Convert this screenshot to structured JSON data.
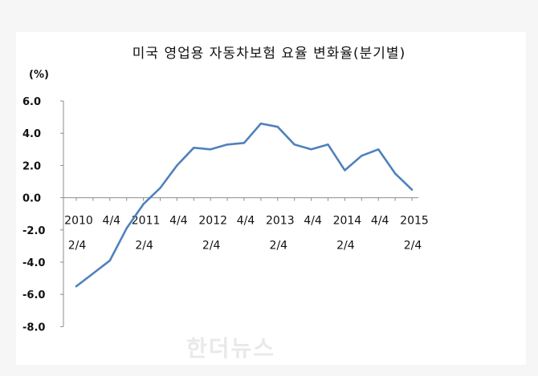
{
  "chart_data": {
    "type": "line",
    "title": "미국 영업용 자동차보험 요율 변화율(분기별)",
    "unit": "(%)",
    "ylim": [
      -8,
      6
    ],
    "yticks": [
      "6.0",
      "4.0",
      "2.0",
      "0.0",
      "-2.0",
      "-4.0",
      "-6.0",
      "-8.0"
    ],
    "ytick_values": [
      6,
      4,
      2,
      0,
      -2,
      -4,
      -6,
      -8
    ],
    "x_labels": [
      {
        "index": 0,
        "line1": "2010",
        "line2": "2/4"
      },
      {
        "index": 2,
        "line1": "4/4",
        "line2": ""
      },
      {
        "index": 4,
        "line1": "2011",
        "line2": "2/4"
      },
      {
        "index": 6,
        "line1": "4/4",
        "line2": ""
      },
      {
        "index": 8,
        "line1": "2012",
        "line2": "2/4"
      },
      {
        "index": 10,
        "line1": "4/4",
        "line2": ""
      },
      {
        "index": 12,
        "line1": "2013",
        "line2": "2/4"
      },
      {
        "index": 14,
        "line1": "4/4",
        "line2": ""
      },
      {
        "index": 16,
        "line1": "2014",
        "line2": "2/4"
      },
      {
        "index": 18,
        "line1": "4/4",
        "line2": ""
      },
      {
        "index": 20,
        "line1": "2015",
        "line2": "2/4"
      }
    ],
    "series": [
      {
        "values": [
          -5.5,
          -4.7,
          -3.9,
          -1.9,
          -0.4,
          0.6,
          2.0,
          3.1,
          3.0,
          3.3,
          3.4,
          4.6,
          4.4,
          3.3,
          3.0,
          3.3,
          1.7,
          2.6,
          3.0,
          1.5,
          0.5
        ],
        "color": "#4f81bd"
      }
    ],
    "grid": false,
    "legend": "none"
  },
  "watermark": "한더뉴스"
}
